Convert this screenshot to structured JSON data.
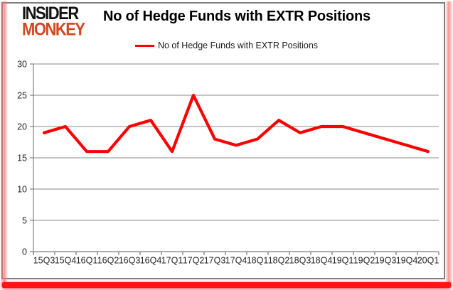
{
  "logo": {
    "line1": "INSIDER",
    "line2": "MONKEY"
  },
  "title": "No of Hedge Funds with EXTR Positions",
  "legend": {
    "label": "No of Hedge Funds with EXTR Positions",
    "color": "#ff0000"
  },
  "colors": {
    "series_red": "#ff0000",
    "logo_red": "#d2491f",
    "frame_grey": "#808080",
    "gridline_grey": "#a0a0a0",
    "bottom_bar_red": "#ff1414"
  },
  "chart_data": {
    "type": "line",
    "title": "No of Hedge Funds with EXTR Positions",
    "categories": [
      "15Q3",
      "15Q4",
      "16Q1",
      "16Q2",
      "16Q3",
      "16Q4",
      "17Q1",
      "17Q2",
      "17Q3",
      "17Q4",
      "18Q1",
      "18Q2",
      "18Q3",
      "18Q4",
      "19Q1",
      "19Q2",
      "19Q3",
      "19Q4",
      "20Q1"
    ],
    "series": [
      {
        "name": "No of Hedge Funds with EXTR Positions",
        "color": "#ff0000",
        "values": [
          19,
          20,
          16,
          16,
          20,
          21,
          16,
          25,
          18,
          17,
          18,
          21,
          19,
          20,
          20,
          19,
          18,
          17,
          16
        ]
      }
    ],
    "xlabel": "",
    "ylabel": "",
    "ylim": [
      0,
      30
    ],
    "ytick_step": 5,
    "grid": true,
    "legend_position": "top-center"
  }
}
